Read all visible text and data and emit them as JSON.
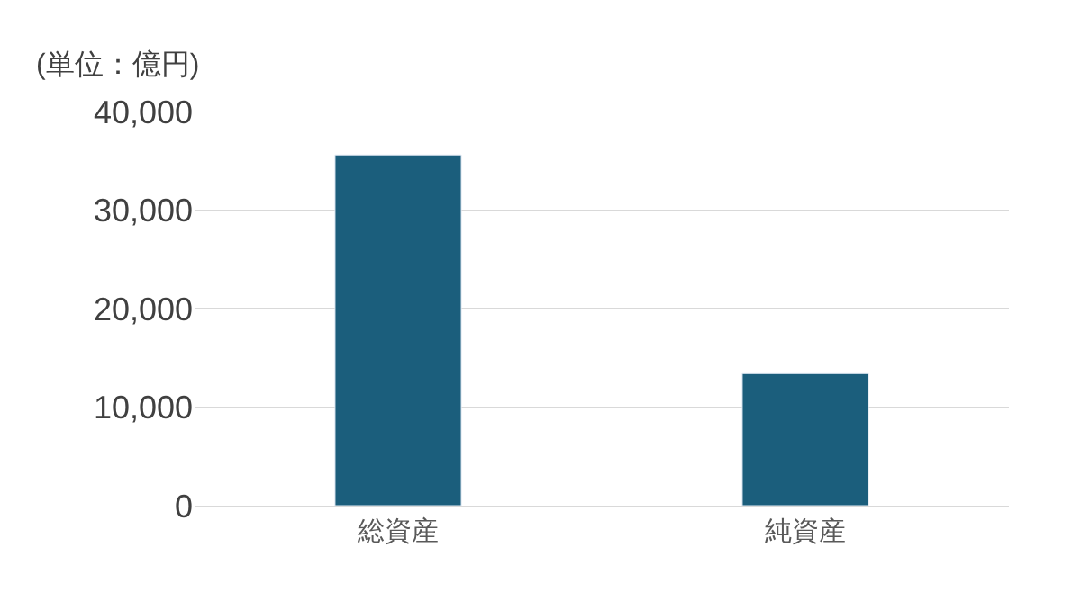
{
  "chart_data": {
    "type": "bar",
    "ylabel": "(単位：億円)",
    "categories": [
      "総資産",
      "純資産"
    ],
    "values": [
      35600,
      13400
    ],
    "color": "#1b5e7c",
    "ylim": [
      0,
      40000
    ],
    "yticks": [
      {
        "value": 0,
        "label": "0"
      },
      {
        "value": 10000,
        "label": "10,000"
      },
      {
        "value": 20000,
        "label": "20,000"
      },
      {
        "value": 30000,
        "label": "30,000"
      },
      {
        "value": 40000,
        "label": "40,000"
      }
    ],
    "grid": "y"
  }
}
